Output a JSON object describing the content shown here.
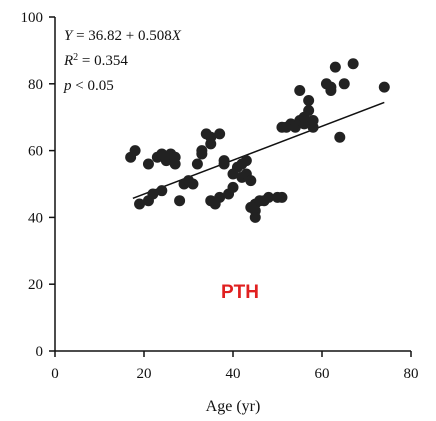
{
  "chart_data": {
    "type": "scatter",
    "title": "",
    "xlabel": "Age (yr)",
    "ylabel": "",
    "xlim": [
      0,
      80
    ],
    "ylim": [
      0,
      100
    ],
    "xticks": [
      0,
      20,
      40,
      60,
      80
    ],
    "yticks": [
      0,
      20,
      40,
      60,
      80,
      100
    ],
    "grid": false,
    "panel_label": "PTH",
    "panel_label_color": "#e02020",
    "point_color": "#222222",
    "annotations": {
      "equation_lhs": "Y",
      "equation_rhs": " = 36.82 + 0.508",
      "equation_var": "X",
      "r2_symbol": "R",
      "r2_sup": "2",
      "r2_value": " = 0.354",
      "p_symbol": "p",
      "p_value": " < 0.05"
    },
    "regression": {
      "intercept": 36.82,
      "slope": 0.508,
      "x_range": [
        17.5,
        74
      ]
    },
    "points": [
      {
        "x": 17,
        "y": 58
      },
      {
        "x": 18,
        "y": 60
      },
      {
        "x": 19,
        "y": 44
      },
      {
        "x": 21,
        "y": 45
      },
      {
        "x": 21,
        "y": 56
      },
      {
        "x": 22,
        "y": 47
      },
      {
        "x": 23,
        "y": 58
      },
      {
        "x": 24,
        "y": 59
      },
      {
        "x": 24,
        "y": 48
      },
      {
        "x": 25,
        "y": 57
      },
      {
        "x": 26,
        "y": 59
      },
      {
        "x": 27,
        "y": 56
      },
      {
        "x": 27,
        "y": 58
      },
      {
        "x": 28,
        "y": 45
      },
      {
        "x": 29,
        "y": 50
      },
      {
        "x": 30,
        "y": 51
      },
      {
        "x": 31,
        "y": 50
      },
      {
        "x": 32,
        "y": 56
      },
      {
        "x": 33,
        "y": 59
      },
      {
        "x": 33,
        "y": 60
      },
      {
        "x": 34,
        "y": 65
      },
      {
        "x": 35,
        "y": 62
      },
      {
        "x": 35,
        "y": 64
      },
      {
        "x": 35,
        "y": 45
      },
      {
        "x": 36,
        "y": 44
      },
      {
        "x": 37,
        "y": 46
      },
      {
        "x": 37,
        "y": 65
      },
      {
        "x": 38,
        "y": 57
      },
      {
        "x": 38,
        "y": 56
      },
      {
        "x": 39,
        "y": 47
      },
      {
        "x": 40,
        "y": 49
      },
      {
        "x": 40,
        "y": 53
      },
      {
        "x": 41,
        "y": 55
      },
      {
        "x": 42,
        "y": 52
      },
      {
        "x": 42,
        "y": 56
      },
      {
        "x": 43,
        "y": 57
      },
      {
        "x": 43,
        "y": 53
      },
      {
        "x": 44,
        "y": 51
      },
      {
        "x": 44,
        "y": 43
      },
      {
        "x": 45,
        "y": 42
      },
      {
        "x": 45,
        "y": 40
      },
      {
        "x": 45,
        "y": 44
      },
      {
        "x": 46,
        "y": 45
      },
      {
        "x": 47,
        "y": 45
      },
      {
        "x": 48,
        "y": 46
      },
      {
        "x": 50,
        "y": 46
      },
      {
        "x": 51,
        "y": 46
      },
      {
        "x": 51,
        "y": 67
      },
      {
        "x": 52,
        "y": 67
      },
      {
        "x": 53,
        "y": 68
      },
      {
        "x": 54,
        "y": 67
      },
      {
        "x": 55,
        "y": 69
      },
      {
        "x": 55,
        "y": 78
      },
      {
        "x": 56,
        "y": 68
      },
      {
        "x": 56,
        "y": 70
      },
      {
        "x": 57,
        "y": 72
      },
      {
        "x": 57,
        "y": 75
      },
      {
        "x": 58,
        "y": 67
      },
      {
        "x": 58,
        "y": 69
      },
      {
        "x": 61,
        "y": 80
      },
      {
        "x": 62,
        "y": 78
      },
      {
        "x": 62,
        "y": 79
      },
      {
        "x": 63,
        "y": 85
      },
      {
        "x": 64,
        "y": 64
      },
      {
        "x": 65,
        "y": 80
      },
      {
        "x": 67,
        "y": 86
      },
      {
        "x": 74,
        "y": 79
      }
    ]
  }
}
